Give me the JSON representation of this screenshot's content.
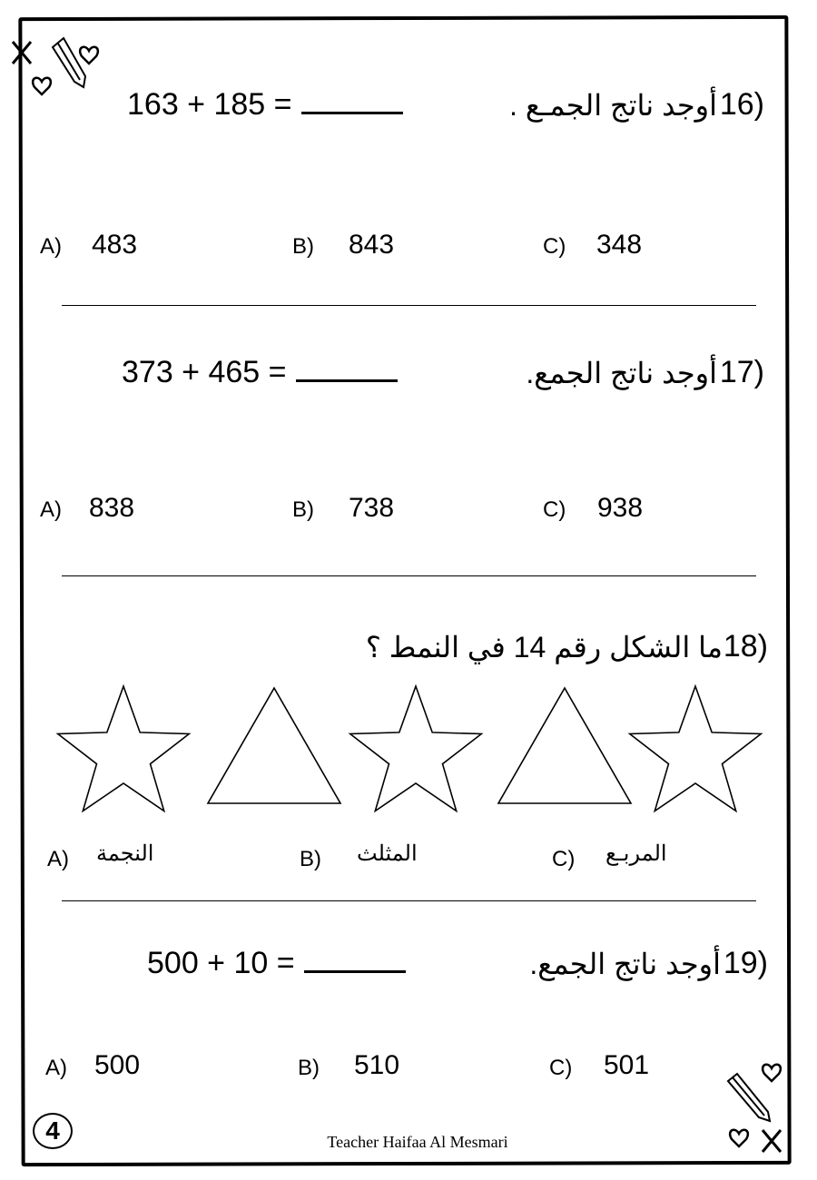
{
  "questions": [
    {
      "number": "16)",
      "text": "أوجد ناتج الجمـع .",
      "equation": "163 + 185 =",
      "options": [
        {
          "label": "A)",
          "value": "483"
        },
        {
          "label": "B)",
          "value": "843"
        },
        {
          "label": "C)",
          "value": "348"
        }
      ]
    },
    {
      "number": "17)",
      "text": "أوجد ناتج الجمع.",
      "equation": "373 + 465 =",
      "options": [
        {
          "label": "A)",
          "value": "838"
        },
        {
          "label": "B)",
          "value": "738"
        },
        {
          "label": "C)",
          "value": "938"
        }
      ]
    },
    {
      "number": "18)",
      "text": "ما الشكل رقم 14 في النمط ؟",
      "pattern": [
        "star",
        "triangle",
        "star",
        "triangle",
        "star"
      ],
      "options": [
        {
          "label": "A)",
          "value": "النجمة"
        },
        {
          "label": "B)",
          "value": "المثلث"
        },
        {
          "label": "C)",
          "value": "المربـع"
        }
      ]
    },
    {
      "number": "19)",
      "text": "أوجد ناتج الجمع.",
      "equation": "500 + 10 =",
      "options": [
        {
          "label": "A)",
          "value": "500"
        },
        {
          "label": "B)",
          "value": "510"
        },
        {
          "label": "C)",
          "value": "501"
        }
      ]
    }
  ],
  "footer": "Teacher Haifaa Al Mesmari",
  "page_number": "4",
  "decorations": [
    "x-icon",
    "pencil-icon",
    "heart-icon"
  ]
}
